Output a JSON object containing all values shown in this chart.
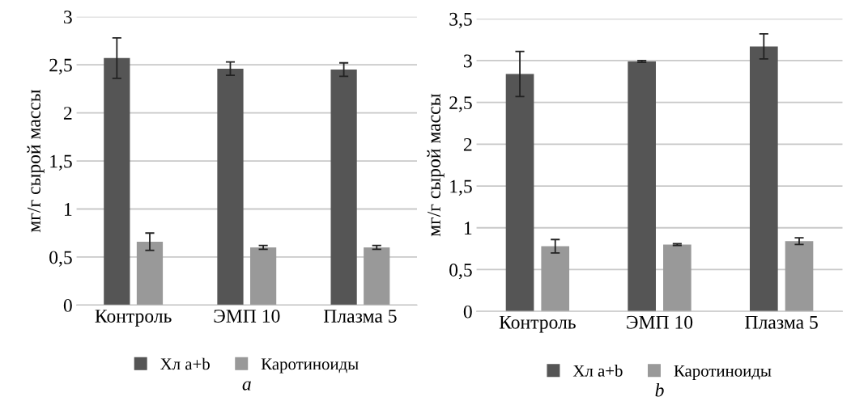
{
  "chart_data": [
    {
      "type": "bar",
      "categories": [
        "Контроль",
        "ЭМП 10",
        "Плазма 5"
      ],
      "ylabel": "мг/г сырой массы",
      "xlabel": "a",
      "series": [
        {
          "name": "Хл a+b",
          "color": "#555555",
          "values": [
            2.57,
            2.46,
            2.45
          ],
          "errors": [
            0.21,
            0.07,
            0.07
          ]
        },
        {
          "name": "Каротиноиды",
          "color": "#999999",
          "values": [
            0.66,
            0.6,
            0.6
          ],
          "errors": [
            0.09,
            0.02,
            0.02
          ]
        }
      ],
      "ylim": [
        0,
        3
      ],
      "yticks": [
        0,
        {
          "value": 0.5,
          "label": "0,5"
        },
        1,
        {
          "value": 1.5,
          "label": "1,5"
        },
        2,
        {
          "value": 2.5,
          "label": "2,5"
        },
        3
      ],
      "grid": "y",
      "legend": "bottom"
    },
    {
      "type": "bar",
      "categories": [
        "Контроль",
        "ЭМП 10",
        "Плазма 5"
      ],
      "ylabel": "мг/г сырой массы",
      "xlabel": "b",
      "series": [
        {
          "name": "Хл a+b",
          "color": "#555555",
          "values": [
            2.84,
            2.99,
            3.17
          ],
          "errors": [
            0.27,
            0.01,
            0.15
          ]
        },
        {
          "name": "Каротиноиды",
          "color": "#999999",
          "values": [
            0.78,
            0.8,
            0.84
          ],
          "errors": [
            0.08,
            0.01,
            0.04
          ]
        }
      ],
      "ylim": [
        0,
        3.5
      ],
      "yticks": [
        0,
        {
          "value": 0.5,
          "label": "0,5"
        },
        1,
        {
          "value": 1.5,
          "label": "1,5"
        },
        2,
        {
          "value": 2.5,
          "label": "2,5"
        },
        3,
        {
          "value": 3.5,
          "label": "3,5"
        }
      ],
      "grid": "y",
      "legend": "bottom"
    }
  ]
}
